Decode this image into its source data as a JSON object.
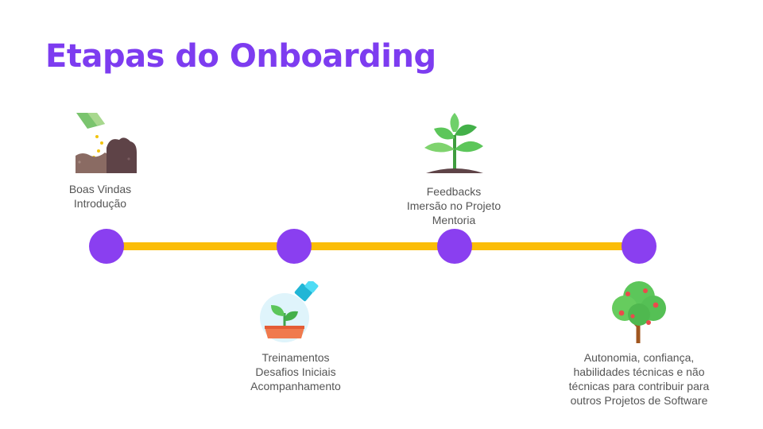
{
  "title": "Etapas do Onboarding",
  "colors": {
    "title": "#7d3cf0",
    "node": "#8a3ff0",
    "line": "#fbbd08",
    "text": "#555555"
  },
  "stages": [
    {
      "icon": "soil-seeding-icon",
      "lines": [
        "Boas Vindas",
        "Introdução"
      ]
    },
    {
      "icon": "sprout-flask-icon",
      "lines": [
        "Treinamentos",
        "Desafios Iniciais",
        "Acompanhamento"
      ]
    },
    {
      "icon": "plant-icon",
      "lines": [
        "Feedbacks",
        "Imersão no Projeto",
        "Mentoria"
      ]
    },
    {
      "icon": "fruit-tree-icon",
      "lines": [
        "Autonomia, confiança, habilidades técnicas e não técnicas para contribuir para outros Projetos de Software"
      ]
    }
  ]
}
